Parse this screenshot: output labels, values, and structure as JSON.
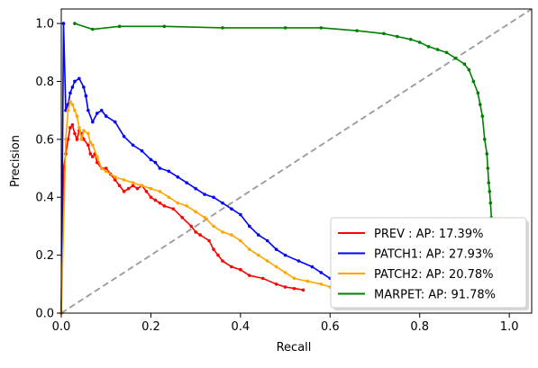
{
  "chart_data": {
    "type": "line",
    "title": "",
    "xlabel": "Recall",
    "ylabel": "Precision",
    "xlim": [
      0.0,
      1.05
    ],
    "ylim": [
      0.0,
      1.05
    ],
    "xticks": [
      "0.0",
      "0.2",
      "0.4",
      "0.6",
      "0.8",
      "1.0"
    ],
    "xtick_values": [
      0.0,
      0.2,
      0.4,
      0.6,
      0.8,
      1.0
    ],
    "yticks": [
      "0.0",
      "0.2",
      "0.4",
      "0.6",
      "0.8",
      "1.0"
    ],
    "ytick_values": [
      0.0,
      0.2,
      0.4,
      0.6,
      0.8,
      1.0
    ],
    "grid": false,
    "legend_position": "bottom-right",
    "reference_line": {
      "style": "dashed",
      "color": "#999999",
      "x": [
        0.0,
        1.05
      ],
      "y": [
        0.0,
        1.05
      ]
    },
    "series": [
      {
        "name": "PREV   :  AP: 17.39%",
        "color": "#ff0000",
        "x": [
          0.0,
          0.005,
          0.01,
          0.015,
          0.02,
          0.025,
          0.03,
          0.035,
          0.04,
          0.045,
          0.05,
          0.06,
          0.065,
          0.07,
          0.075,
          0.08,
          0.09,
          0.1,
          0.11,
          0.12,
          0.13,
          0.14,
          0.15,
          0.16,
          0.17,
          0.18,
          0.19,
          0.2,
          0.21,
          0.22,
          0.23,
          0.25,
          0.27,
          0.29,
          0.3,
          0.31,
          0.33,
          0.34,
          0.35,
          0.36,
          0.38,
          0.4,
          0.42,
          0.45,
          0.48,
          0.5,
          0.52,
          0.54
        ],
        "y": [
          0.0,
          0.5,
          0.55,
          0.6,
          0.64,
          0.65,
          0.62,
          0.6,
          0.63,
          0.62,
          0.6,
          0.58,
          0.55,
          0.54,
          0.55,
          0.52,
          0.5,
          0.5,
          0.48,
          0.46,
          0.44,
          0.42,
          0.43,
          0.44,
          0.43,
          0.44,
          0.42,
          0.4,
          0.39,
          0.38,
          0.37,
          0.36,
          0.33,
          0.3,
          0.28,
          0.27,
          0.25,
          0.22,
          0.2,
          0.18,
          0.16,
          0.15,
          0.13,
          0.12,
          0.1,
          0.09,
          0.085,
          0.08
        ]
      },
      {
        "name": "PATCH1: AP: 27.93%",
        "color": "#0000ff",
        "x": [
          0.0,
          0.005,
          0.01,
          0.015,
          0.02,
          0.025,
          0.03,
          0.04,
          0.05,
          0.055,
          0.06,
          0.07,
          0.08,
          0.09,
          0.1,
          0.12,
          0.14,
          0.16,
          0.18,
          0.2,
          0.21,
          0.22,
          0.24,
          0.26,
          0.28,
          0.3,
          0.32,
          0.34,
          0.36,
          0.38,
          0.4,
          0.42,
          0.44,
          0.46,
          0.48,
          0.5,
          0.53,
          0.56,
          0.58,
          0.6
        ],
        "y": [
          0.0,
          1.0,
          0.7,
          0.72,
          0.76,
          0.78,
          0.8,
          0.81,
          0.78,
          0.75,
          0.7,
          0.66,
          0.69,
          0.7,
          0.68,
          0.66,
          0.61,
          0.58,
          0.56,
          0.53,
          0.52,
          0.5,
          0.49,
          0.47,
          0.45,
          0.43,
          0.41,
          0.4,
          0.38,
          0.36,
          0.34,
          0.3,
          0.27,
          0.25,
          0.22,
          0.2,
          0.18,
          0.16,
          0.14,
          0.12
        ]
      },
      {
        "name": "PATCH2: AP: 20.78%",
        "color": "#ffa500",
        "x": [
          0.0,
          0.01,
          0.015,
          0.02,
          0.025,
          0.03,
          0.035,
          0.04,
          0.045,
          0.05,
          0.06,
          0.065,
          0.07,
          0.08,
          0.09,
          0.1,
          0.12,
          0.14,
          0.16,
          0.18,
          0.2,
          0.22,
          0.24,
          0.26,
          0.28,
          0.3,
          0.32,
          0.34,
          0.36,
          0.38,
          0.4,
          0.42,
          0.44,
          0.46,
          0.48,
          0.5,
          0.52,
          0.55,
          0.58,
          0.6
        ],
        "y": [
          0.0,
          0.6,
          0.7,
          0.73,
          0.72,
          0.7,
          0.68,
          0.64,
          0.6,
          0.63,
          0.62,
          0.59,
          0.58,
          0.54,
          0.5,
          0.49,
          0.47,
          0.46,
          0.45,
          0.44,
          0.43,
          0.42,
          0.4,
          0.38,
          0.37,
          0.35,
          0.33,
          0.3,
          0.28,
          0.27,
          0.25,
          0.22,
          0.2,
          0.18,
          0.16,
          0.14,
          0.12,
          0.11,
          0.1,
          0.09
        ]
      },
      {
        "name": "MARPET: AP: 91.78%",
        "color": "#008000",
        "x": [
          0.03,
          0.07,
          0.13,
          0.23,
          0.36,
          0.5,
          0.58,
          0.66,
          0.72,
          0.75,
          0.78,
          0.8,
          0.82,
          0.84,
          0.86,
          0.88,
          0.9,
          0.91,
          0.92,
          0.93,
          0.935,
          0.94,
          0.945,
          0.95,
          0.952,
          0.954,
          0.956,
          0.958,
          0.96
        ],
        "y": [
          1.0,
          0.98,
          0.99,
          0.99,
          0.985,
          0.985,
          0.985,
          0.975,
          0.965,
          0.955,
          0.945,
          0.935,
          0.92,
          0.91,
          0.9,
          0.88,
          0.86,
          0.84,
          0.8,
          0.76,
          0.72,
          0.68,
          0.6,
          0.55,
          0.5,
          0.45,
          0.42,
          0.38,
          0.33
        ]
      }
    ]
  }
}
